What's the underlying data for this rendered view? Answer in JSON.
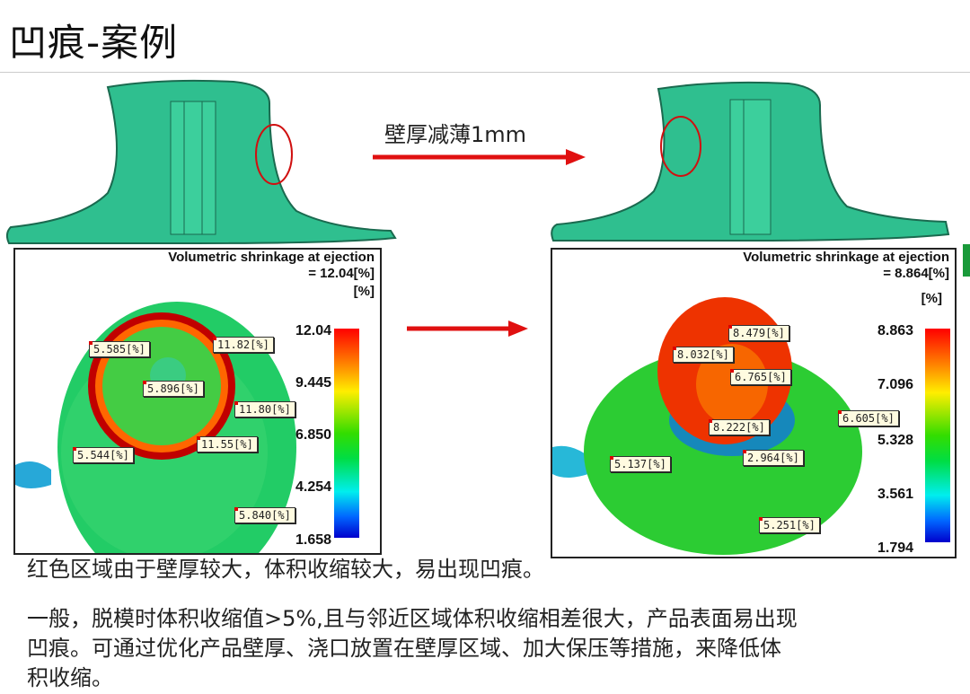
{
  "title": "凹痕-案例",
  "arrow_label": "壁厚减薄1mm",
  "colors": {
    "part": "#2fbf8f",
    "arrow": "#e01010",
    "circle": "#d01010"
  },
  "left_panel": {
    "title": "Volumetric shrinkage at ejection",
    "value": "= 12.04[%]",
    "unit": "[%]",
    "ticks": [
      "12.04",
      "9.445",
      "6.850",
      "4.254",
      "1.658"
    ],
    "labels": [
      "5.585[%]",
      "11.82[%]",
      "5.896[%]",
      "11.80[%]",
      "11.55[%]",
      "5.544[%]",
      "5.840[%]"
    ]
  },
  "right_panel": {
    "title": "Volumetric shrinkage at ejection",
    "value": "= 8.864[%]",
    "unit": "[%]",
    "ticks": [
      "8.863",
      "7.096",
      "5.328",
      "3.561",
      "1.794"
    ],
    "labels": [
      "8.479[%]",
      "8.032[%]",
      "6.765[%]",
      "8.222[%]",
      "6.605[%]",
      "5.137[%]",
      "2.964[%]",
      "5.251[%]"
    ]
  },
  "text": {
    "line1": "红色区域由于壁厚较大，体积收缩较大，易出现凹痕。",
    "line2": "一般，脱模时体积收缩值>5%,且与邻近区域体积收缩相差很大，产品表面易出现",
    "line3": "凹痕。可通过优化产品壁厚、浇口放置在壁厚区域、加大保压等措施，来降低体",
    "line4": "积收缩。"
  }
}
